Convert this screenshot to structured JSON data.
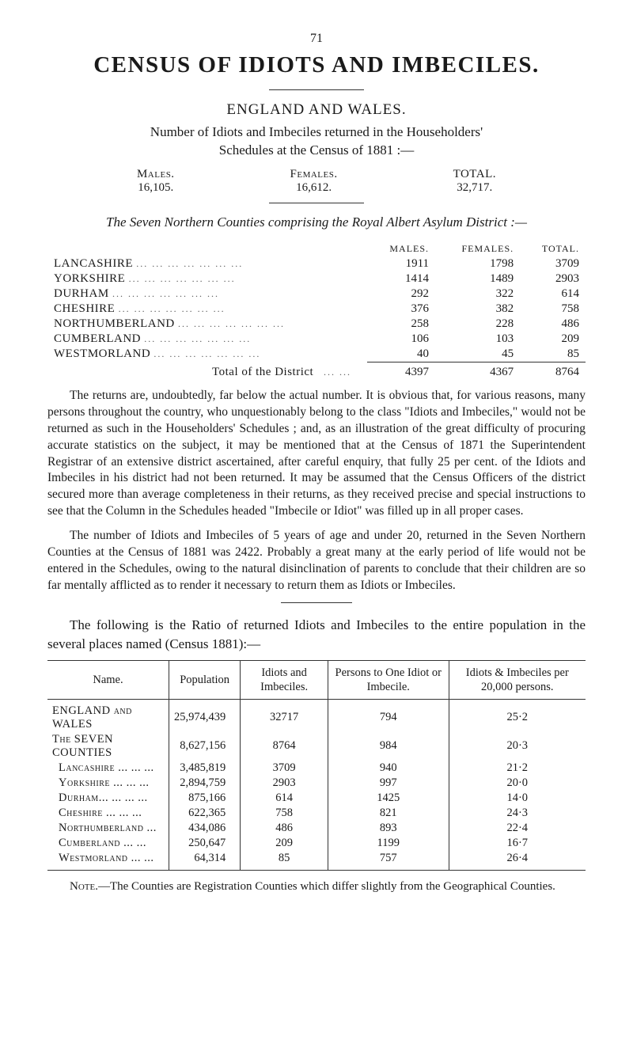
{
  "page_number": "71",
  "main_title": "CENSUS OF IDIOTS AND IMBECILES.",
  "section_title": "ENGLAND AND WALES.",
  "intro_line_1": "Number of Idiots and Imbeciles returned in the Householders'",
  "intro_line_2": "Schedules at the Census of 1881 :—",
  "totals": {
    "males_label": "Males.",
    "males_value": "16,105.",
    "females_label": "Females.",
    "females_value": "16,612.",
    "total_label": "TOTAL.",
    "total_value": "32,717."
  },
  "subheading": "The Seven Northern Counties comprising the Royal Albert Asylum District :—",
  "district_table": {
    "headers": [
      "",
      "MALES.",
      "FEMALES.",
      "TOTAL."
    ],
    "rows": [
      {
        "name": "LANCASHIRE",
        "males": "1911",
        "females": "1798",
        "total": "3709"
      },
      {
        "name": "YORKSHIRE",
        "males": "1414",
        "females": "1489",
        "total": "2903"
      },
      {
        "name": "DURHAM",
        "males": "292",
        "females": "322",
        "total": "614"
      },
      {
        "name": "CHESHIRE",
        "males": "376",
        "females": "382",
        "total": "758"
      },
      {
        "name": "NORTHUMBERLAND",
        "males": "258",
        "females": "228",
        "total": "486"
      },
      {
        "name": "CUMBERLAND",
        "males": "106",
        "females": "103",
        "total": "209"
      },
      {
        "name": "WESTMORLAND",
        "males": "40",
        "females": "45",
        "total": "85"
      }
    ],
    "total_label": "Total of the District",
    "total_row": {
      "males": "4397",
      "females": "4367",
      "total": "8764"
    }
  },
  "para_1": "The returns are, undoubtedly, far below the actual number.  It is obvious that, for various reasons, many persons throughout the country, who unquestionably belong to the class \"Idiots and Imbeciles,\" would not be returned as such in the Householders' Schedules ; and, as an illustration of the great difficulty of procuring accurate statistics on the subject, it may be mentioned that at the Census of 1871 the Superintendent Registrar of an extensive district ascertained, after careful enquiry, that fully 25 per cent. of the Idiots and Imbeciles in his district had not been returned.  It may be assumed that the Census Officers of the district secured more than average complete­ness in their returns, as they received precise and special instructions to see that the Column in the Schedules headed \"Imbecile or Idiot\" was filled up in all proper cases.",
  "para_2": "The number of Idiots and Imbeciles of 5 years of age and under 20, returned in the Seven Northern Counties at the Census of 1881 was 2422.  Probably a great many at the early period of life would not be entered in the Schedules, owing to the natural disinclination of parents to conclude that their children are so far mentally afflicted as to render it necessary to return them as Idiots or Imbeciles.",
  "ratio_heading": "The following is the Ratio of returned Idiots and Imbeciles to the entire population in the several places named (Census 1881):—",
  "ratio_table": {
    "headers": [
      "Name.",
      "Population",
      "Idiots and Imbeciles.",
      "Persons to One Idiot or Imbecile.",
      "Idiots & Imbeciles per 20,000 persons."
    ],
    "rows": [
      {
        "name": "ENGLAND and WALES",
        "population": "25,974,439",
        "idiots": "32717",
        "persons": "794",
        "per20000": "25·2",
        "indent": false,
        "smallcaps": true
      },
      {
        "name": "The SEVEN COUNTIES",
        "population": "8,627,156",
        "idiots": "8764",
        "persons": "984",
        "per20000": "20·3",
        "indent": false,
        "smallcaps": true
      },
      {
        "name": "Lancashire ...  ...  ...",
        "population": "3,485,819",
        "idiots": "3709",
        "persons": "940",
        "per20000": "21·2",
        "indent": true,
        "smallcaps": true
      },
      {
        "name": "Yorkshire  ...  ...  ...",
        "population": "2,894,759",
        "idiots": "2903",
        "persons": "997",
        "per20000": "20·0",
        "indent": true,
        "smallcaps": true
      },
      {
        "name": "Durham...  ...  ...  ...",
        "population": "875,166",
        "idiots": "614",
        "persons": "1425",
        "per20000": "14·0",
        "indent": true,
        "smallcaps": true
      },
      {
        "name": "Cheshire   ...  ...  ...",
        "population": "622,365",
        "idiots": "758",
        "persons": "821",
        "per20000": "24·3",
        "indent": true,
        "smallcaps": true
      },
      {
        "name": "Northumberland  ...",
        "population": "434,086",
        "idiots": "486",
        "persons": "893",
        "per20000": "22·4",
        "indent": true,
        "smallcaps": true
      },
      {
        "name": "Cumberland    ...  ...",
        "population": "250,647",
        "idiots": "209",
        "persons": "1199",
        "per20000": "16·7",
        "indent": true,
        "smallcaps": true
      },
      {
        "name": "Westmorland  ...  ...",
        "population": "64,314",
        "idiots": "85",
        "persons": "757",
        "per20000": "26·4",
        "indent": true,
        "smallcaps": true
      }
    ]
  },
  "note_label": "Note.",
  "note_text": "—The Counties are Registration Counties which differ slightly from the Geographical Counties."
}
